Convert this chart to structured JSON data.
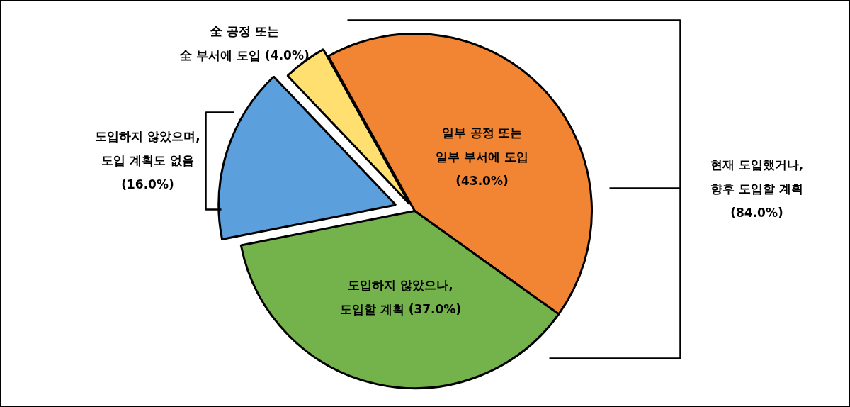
{
  "chart_data": {
    "type": "pie",
    "categories": [
      "일부 공정 또는\n일부 부서에 도입",
      "도입하지 않았으나,\n도입할 계획",
      "도입하지 않았으며,\n도입 계획도 없음",
      "全 공정 또는\n全 부서에 도입"
    ],
    "values": [
      43.0,
      37.0,
      16.0,
      4.0
    ],
    "colors": [
      "#f28533",
      "#74b24b",
      "#5b9fdc",
      "#ffdf70"
    ],
    "value_labels": [
      "(43.0%)",
      "(37.0%)",
      "(16.0%)",
      "(4.0%)"
    ],
    "annotations": [
      "현재 도입했거나,\n향후 도입할 계획\n(84.0%)"
    ]
  }
}
